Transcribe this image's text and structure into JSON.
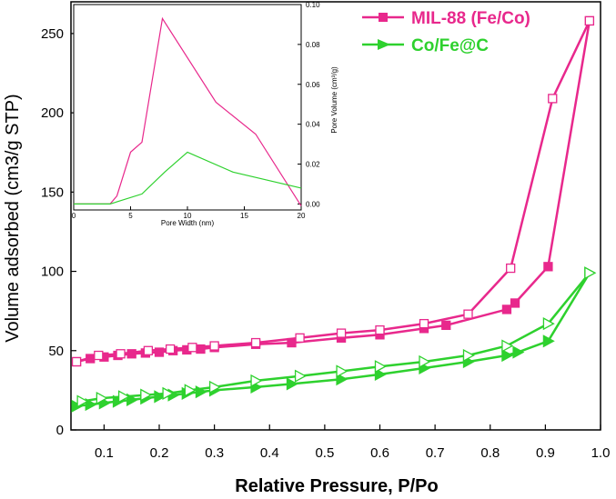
{
  "chart_data": {
    "type": "line",
    "title": "",
    "xlabel": "Relative Pressure, P/Po",
    "ylabel": "Volume adsorbed (cm3/g STP)",
    "xlim": [
      0.04,
      1.0
    ],
    "ylim": [
      0,
      270
    ],
    "xticks": [
      0.1,
      0.2,
      0.3,
      0.4,
      0.5,
      0.6,
      0.7,
      0.8,
      0.9,
      1.0
    ],
    "xtick_labels": [
      "0.1",
      "0.2",
      "0.3",
      "0.4",
      "0.5",
      "0.6",
      "0.7",
      "0.8",
      "0.9",
      "1.0"
    ],
    "yticks": [
      0,
      50,
      100,
      150,
      200,
      250
    ],
    "ytick_labels": [
      "0",
      "50",
      "100",
      "150",
      "200",
      "250"
    ],
    "legend_position": "top-right",
    "series": [
      {
        "name": "MIL-88 (Fe/Co)",
        "color": "#e8288c",
        "marker": "square",
        "adsorption": {
          "x": [
            0.05,
            0.075,
            0.1,
            0.125,
            0.15,
            0.175,
            0.2,
            0.225,
            0.25,
            0.275,
            0.3,
            0.375,
            0.44,
            0.53,
            0.6,
            0.68,
            0.72,
            0.83,
            0.845,
            0.905,
            0.98
          ],
          "y": [
            43,
            45,
            46,
            47,
            48,
            48.5,
            49,
            50,
            50.5,
            51,
            52,
            54,
            55,
            58,
            60,
            64,
            66,
            76,
            80,
            103,
            258
          ]
        },
        "desorption": {
          "x": [
            0.98,
            0.913,
            0.837,
            0.76,
            0.68,
            0.6,
            0.53,
            0.455,
            0.375,
            0.3,
            0.26,
            0.22,
            0.18,
            0.13,
            0.09,
            0.05
          ],
          "y": [
            258,
            209,
            102,
            73,
            67,
            63,
            61,
            58,
            55,
            53,
            52,
            51,
            50,
            48,
            47,
            43
          ]
        }
      },
      {
        "name": "Co/Fe@C",
        "color": "#2ed12e",
        "marker": "triangle-right",
        "adsorption": {
          "x": [
            0.05,
            0.075,
            0.1,
            0.125,
            0.15,
            0.175,
            0.2,
            0.225,
            0.25,
            0.275,
            0.3,
            0.375,
            0.44,
            0.53,
            0.6,
            0.68,
            0.76,
            0.83,
            0.85,
            0.905,
            0.98
          ],
          "y": [
            15,
            16,
            17,
            18,
            19,
            20,
            21,
            22,
            23,
            24,
            25,
            27,
            29,
            32,
            35,
            39,
            43,
            47,
            49,
            56,
            99
          ]
        },
        "desorption": {
          "x": [
            0.98,
            0.905,
            0.83,
            0.76,
            0.68,
            0.6,
            0.53,
            0.455,
            0.375,
            0.3,
            0.255,
            0.215,
            0.175,
            0.135,
            0.095,
            0.06
          ],
          "y": [
            99,
            67,
            53,
            47,
            43,
            40,
            37,
            34,
            31,
            27,
            25,
            23,
            22,
            21,
            20,
            18
          ]
        }
      }
    ],
    "inset": {
      "type": "line",
      "xlabel": "Pore Width (nm)",
      "ylabel": "Pore Volume (cm³/g)",
      "xlim": [
        0,
        20
      ],
      "ylim": [
        -0.003,
        0.1
      ],
      "xticks": [
        0,
        5,
        10,
        15,
        20
      ],
      "xtick_labels": [
        "0",
        "5",
        "10",
        "15",
        "20"
      ],
      "yticks": [
        0.0,
        0.02,
        0.04,
        0.06,
        0.08,
        0.1
      ],
      "ytick_labels": [
        "0.00",
        "0.02",
        "0.04",
        "0.06",
        "0.08",
        "0.10"
      ],
      "y_axis_side": "right",
      "series": [
        {
          "color": "#e8288c",
          "x": [
            0,
            3.2,
            3.8,
            5.0,
            6.0,
            7.8,
            12.5,
            16.0,
            20.0
          ],
          "y": [
            0.0,
            0.0,
            0.004,
            0.026,
            0.031,
            0.093,
            0.051,
            0.035,
            -0.001
          ]
        },
        {
          "color": "#2ed12e",
          "x": [
            0,
            3.2,
            6.0,
            8.0,
            10.0,
            14.0,
            20.0
          ],
          "y": [
            0.0,
            0.0,
            0.005,
            0.016,
            0.026,
            0.016,
            0.008
          ]
        }
      ]
    }
  }
}
